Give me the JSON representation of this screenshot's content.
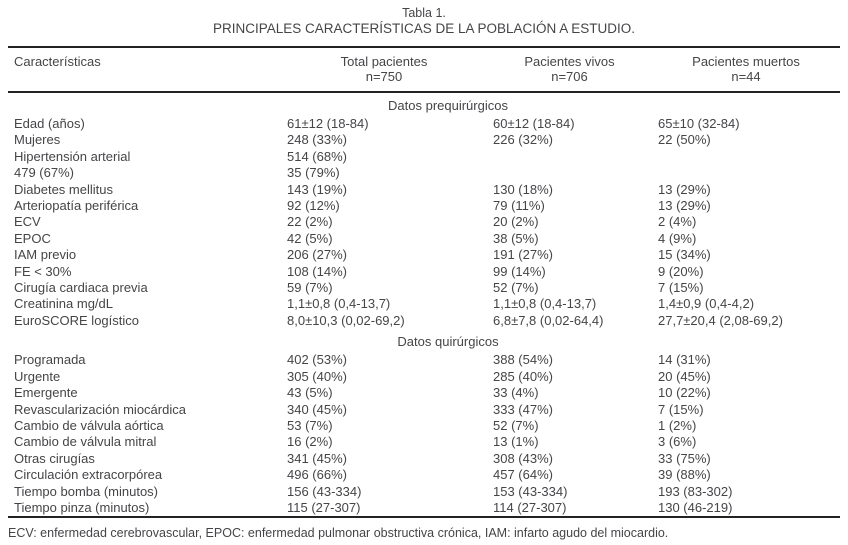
{
  "title": {
    "line1": "Tabla 1.",
    "line2": "PRINCIPALES CARACTERÍSTICAS DE LA POBLACIÓN A ESTUDIO."
  },
  "table": {
    "header": {
      "col0": "Características",
      "col1": {
        "label": "Total pacientes",
        "n": "n=750"
      },
      "col2": {
        "label": "Pacientes vivos",
        "n": "n=706"
      },
      "col3": {
        "label": "Pacientes muertos",
        "n": "n=44"
      }
    },
    "sections": [
      {
        "title": "Datos prequirúrgicos",
        "rows": [
          {
            "label": "Edad (años)",
            "total": "61±12 (18-84)",
            "vivos": "60±12 (18-84)",
            "muertos": "65±10 (32-84)"
          },
          {
            "label": "Mujeres",
            "total": "248 (33%)",
            "vivos": "226 (32%)",
            "muertos": "22 (50%)"
          },
          {
            "label": "Hipertensión arterial",
            "total": "514 (68%)",
            "vivos": "",
            "muertos": ""
          },
          {
            "label": "479 (67%)",
            "total": "35 (79%)",
            "vivos": "",
            "muertos": ""
          },
          {
            "label": "Diabetes mellitus",
            "total": "143 (19%)",
            "vivos": "130 (18%)",
            "muertos": "13 (29%)"
          },
          {
            "label": "Arteriopatía periférica",
            "total": "92 (12%)",
            "vivos": "79 (11%)",
            "muertos": "13 (29%)"
          },
          {
            "label": "ECV",
            "total": "22 (2%)",
            "vivos": "20 (2%)",
            "muertos": "2 (4%)"
          },
          {
            "label": "EPOC",
            "total": "42 (5%)",
            "vivos": "38 (5%)",
            "muertos": "4 (9%)"
          },
          {
            "label": "IAM previo",
            "total": "206 (27%)",
            "vivos": "191 (27%)",
            "muertos": "15 (34%)"
          },
          {
            "label": "FE < 30%",
            "total": "108 (14%)",
            "vivos": "99 (14%)",
            "muertos": "9 (20%)"
          },
          {
            "label": "Cirugía cardiaca previa",
            "total": "59 (7%)",
            "vivos": "52 (7%)",
            "muertos": "7 (15%)"
          },
          {
            "label": "Creatinina mg/dL",
            "total": "1,1±0,8 (0,4-13,7)",
            "vivos": "1,1±0,8 (0,4-13,7)",
            "muertos": "1,4±0,9 (0,4-4,2)"
          },
          {
            "label": "EuroSCORE logístico",
            "total": "8,0±10,3 (0,02-69,2)",
            "vivos": "6,8±7,8 (0,02-64,4)",
            "muertos": "27,7±20,4 (2,08-69,2)"
          }
        ]
      },
      {
        "title": "Datos quirúrgicos",
        "rows": [
          {
            "label": "Programada",
            "total": "402 (53%)",
            "vivos": "388 (54%)",
            "muertos": "14 (31%)"
          },
          {
            "label": "Urgente",
            "total": "305 (40%)",
            "vivos": "285 (40%)",
            "muertos": "20 (45%)"
          },
          {
            "label": "Emergente",
            "total": "43 (5%)",
            "vivos": "33 (4%)",
            "muertos": "10 (22%)"
          },
          {
            "label": "Revascularización miocárdica",
            "total": "340 (45%)",
            "vivos": "333 (47%)",
            "muertos": "7 (15%)"
          },
          {
            "label": "Cambio de válvula aórtica",
            "total": "53 (7%)",
            "vivos": "52 (7%)",
            "muertos": "1 (2%)"
          },
          {
            "label": "Cambio de válvula mitral",
            "total": "16 (2%)",
            "vivos": "13 (1%)",
            "muertos": "3 (6%)"
          },
          {
            "label": "Otras cirugías",
            "total": "341 (45%)",
            "vivos": "308 (43%)",
            "muertos": "33 (75%)"
          },
          {
            "label": "Circulación extracorpórea",
            "total": "496 (66%)",
            "vivos": "457 (64%)",
            "muertos": "39 (88%)"
          },
          {
            "label": "Tiempo bomba (minutos)",
            "total": "156 (43-334)",
            "vivos": "153 (43-334)",
            "muertos": "193 (83-302)"
          },
          {
            "label": "Tiempo pinza (minutos)",
            "total": "115 (27-307)",
            "vivos": "114 (27-307)",
            "muertos": "130 (46-219)"
          }
        ]
      }
    ]
  },
  "footnote": "ECV: enfermedad cerebrovascular, EPOC: enfermedad pulmonar obstructiva crónica, IAM: infarto agudo del miocardio.",
  "colors": {
    "text": "#454548",
    "rule": "#222225",
    "background": "#ffffff"
  }
}
